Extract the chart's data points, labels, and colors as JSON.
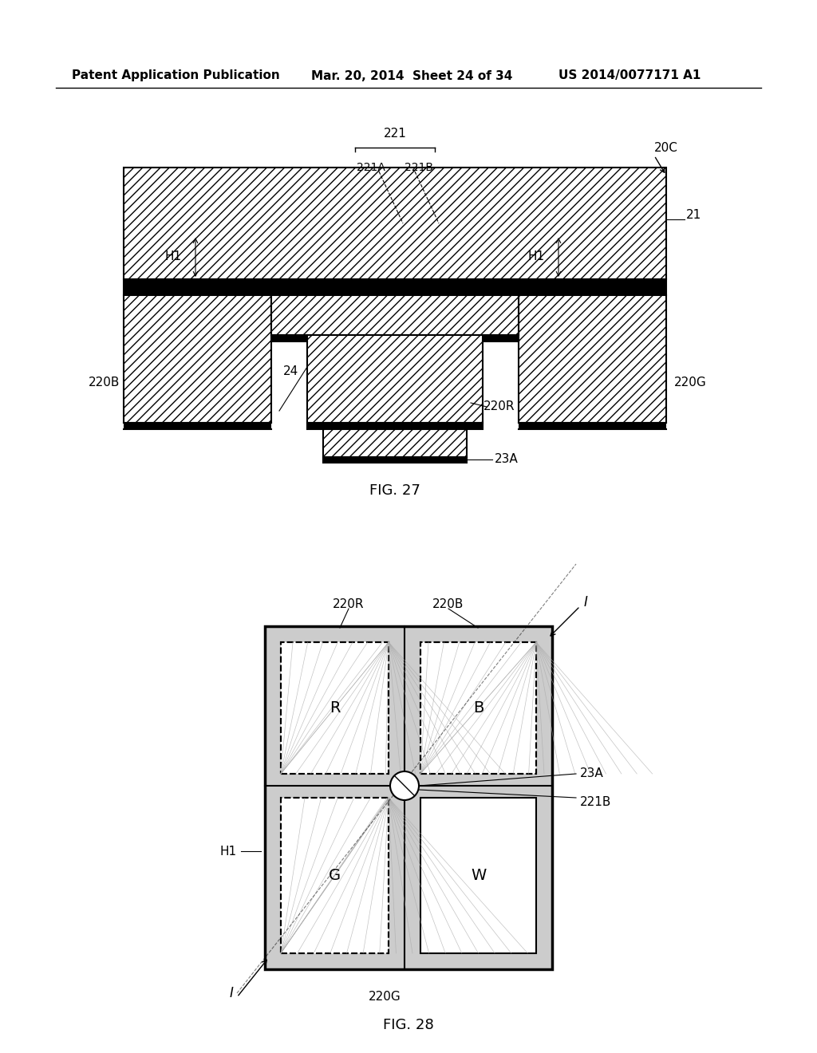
{
  "bg_color": "#ffffff",
  "line_color": "#000000",
  "hatch_color": "#000000",
  "header_left": "Patent Application Publication",
  "header_mid": "Mar. 20, 2014  Sheet 24 of 34",
  "header_right": "US 2014/0077171 A1",
  "fig27_label": "FIG. 27",
  "fig28_label": "FIG. 28",
  "label_221": "221",
  "label_221A": "221A",
  "label_221B_top": "221B",
  "label_20C": "20C",
  "label_21": "21",
  "label_H1_left": "H1",
  "label_H1_right": "H1",
  "label_220B": "220B",
  "label_24": "24",
  "label_220R": "220R",
  "label_220G": "220G",
  "label_23A_top": "23A",
  "label_220R_fig28": "220R",
  "label_220B_fig28": "220B",
  "label_H1_fig28": "H1",
  "label_23A_fig28": "23A",
  "label_221B_fig28": "221B",
  "label_220G_fig28": "220G",
  "label_R": "R",
  "label_B": "B",
  "label_G": "G",
  "label_W": "W",
  "label_I_top": "I",
  "label_I_bot": "I",
  "dot_pattern_color": "#b0b0b0",
  "hatch_line_color": "#555555"
}
